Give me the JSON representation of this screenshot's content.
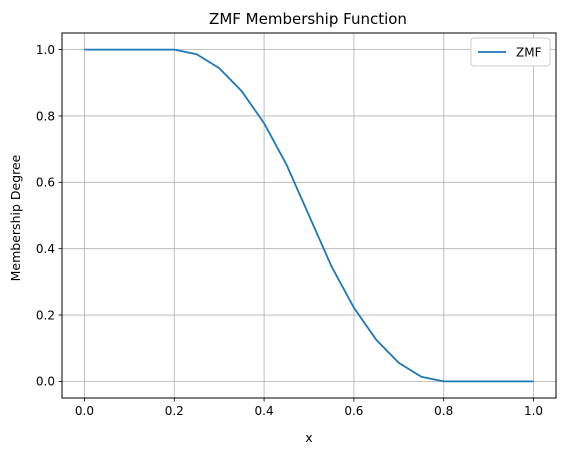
{
  "chart_data": {
    "type": "line",
    "title": "ZMF Membership Function",
    "xlabel": "x",
    "ylabel": "Membership Degree",
    "xlim": [
      -0.05,
      1.05
    ],
    "ylim": [
      -0.05,
      1.05
    ],
    "xticks": [
      0.0,
      0.2,
      0.4,
      0.6,
      0.8,
      1.0
    ],
    "xtick_labels": [
      "0.0",
      "0.2",
      "0.4",
      "0.6",
      "0.8",
      "1.0"
    ],
    "yticks": [
      0.0,
      0.2,
      0.4,
      0.6,
      0.8,
      1.0
    ],
    "ytick_labels": [
      "0.0",
      "0.2",
      "0.4",
      "0.6",
      "0.8",
      "1.0"
    ],
    "grid": true,
    "legend_position": "top-right",
    "series": [
      {
        "name": "ZMF",
        "color": "#1f77b4",
        "x": [
          0.0,
          0.1,
          0.2,
          0.25,
          0.3,
          0.35,
          0.4,
          0.45,
          0.5,
          0.55,
          0.6,
          0.65,
          0.7,
          0.75,
          0.8,
          0.9,
          1.0
        ],
        "y": [
          1.0,
          1.0,
          1.0,
          0.986,
          0.944,
          0.875,
          0.778,
          0.653,
          0.5,
          0.347,
          0.222,
          0.125,
          0.056,
          0.014,
          0.0,
          0.0,
          0.0
        ]
      }
    ]
  }
}
